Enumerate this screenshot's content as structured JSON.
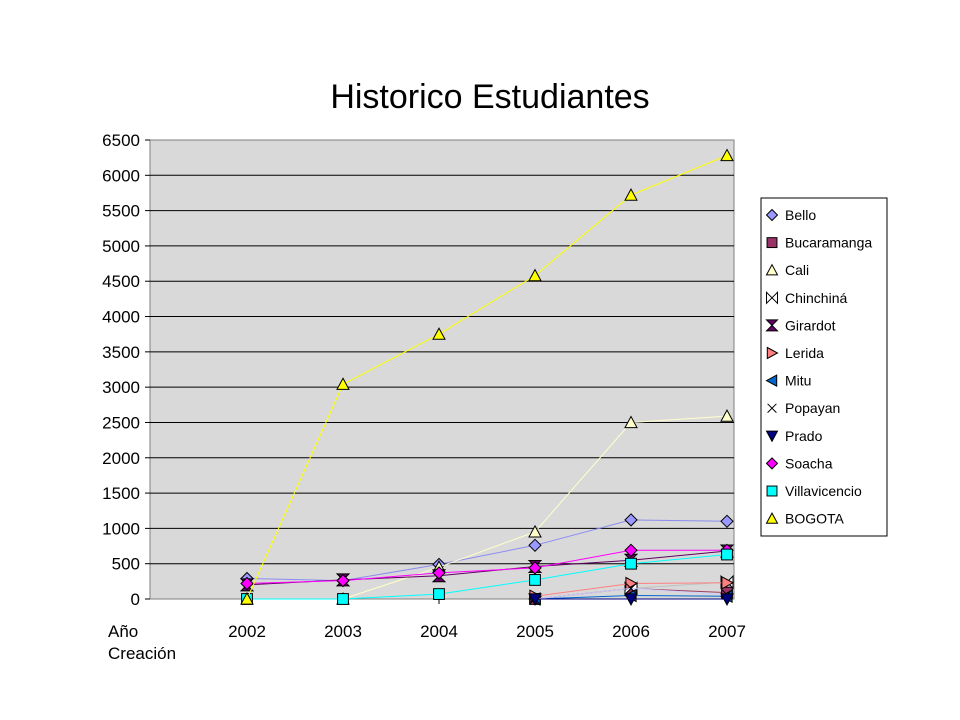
{
  "chart_data": {
    "type": "line",
    "title": "Historico Estudiantes",
    "xlabel": "Año Creación",
    "ylabel": "",
    "categories": [
      "2002",
      "2003",
      "2004",
      "2005",
      "2006",
      "2007"
    ],
    "ylim": [
      0,
      6500
    ],
    "yticks": [
      0,
      500,
      1000,
      1500,
      2000,
      2500,
      3000,
      3500,
      4000,
      4500,
      5000,
      5500,
      6000,
      6500
    ],
    "grid": "horizontal",
    "plot_background": "#d9d9d9",
    "legend_position": "right",
    "series": [
      {
        "name": "Bello",
        "color": "#8c8cf0",
        "marker": "diamond",
        "marker_fill": "#9999ff",
        "values": [
          290,
          260,
          490,
          760,
          1120,
          1100
        ]
      },
      {
        "name": "Bucaramanga",
        "color": "#a0405c",
        "marker": "square",
        "marker_fill": "#993366",
        "values": [
          null,
          null,
          null,
          0,
          150,
          90
        ]
      },
      {
        "name": "Cali",
        "color": "#ffffcc",
        "marker": "triangle",
        "marker_fill": "#ffffcc",
        "values": [
          null,
          0,
          450,
          950,
          2500,
          2590
        ]
      },
      {
        "name": "Chinchiná",
        "color": "#c0c0c0",
        "marker": "bowtie",
        "marker_fill": "#ffffff",
        "values": [
          null,
          null,
          null,
          null,
          150,
          240
        ]
      },
      {
        "name": "Girardot",
        "color": "#600060",
        "marker": "hourglass",
        "marker_fill": "#660066",
        "values": [
          200,
          270,
          330,
          460,
          550,
          680
        ]
      },
      {
        "name": "Lerida",
        "color": "#ff8080",
        "marker": "triangle-right",
        "marker_fill": "#ff8080",
        "values": [
          null,
          null,
          null,
          40,
          220,
          230
        ]
      },
      {
        "name": "Mitu",
        "color": "#0066cc",
        "marker": "triangle-left",
        "marker_fill": "#0066cc",
        "values": [
          null,
          null,
          null,
          0,
          50,
          40
        ]
      },
      {
        "name": "Popayan",
        "color": "#ccccff",
        "marker": "x",
        "marker_fill": "#ccccff",
        "values": [
          null,
          null,
          null,
          0,
          150,
          60
        ]
      },
      {
        "name": "Prado",
        "color": "#000080",
        "marker": "triangle-down",
        "marker_fill": "#000080",
        "values": [
          null,
          null,
          null,
          0,
          0,
          0
        ]
      },
      {
        "name": "Soacha",
        "color": "#ff00ff",
        "marker": "diamond",
        "marker_fill": "#ff00ff",
        "values": [
          220,
          260,
          370,
          440,
          690,
          690
        ]
      },
      {
        "name": "Villavicencio",
        "color": "#00ffff",
        "marker": "square",
        "marker_fill": "#00ffff",
        "values": [
          0,
          0,
          70,
          270,
          500,
          630
        ]
      },
      {
        "name": "BOGOTA",
        "color": "#ffff00",
        "marker": "triangle",
        "marker_fill": "#ffff00",
        "values": [
          0,
          3040,
          3750,
          4580,
          5720,
          6280
        ]
      }
    ]
  }
}
